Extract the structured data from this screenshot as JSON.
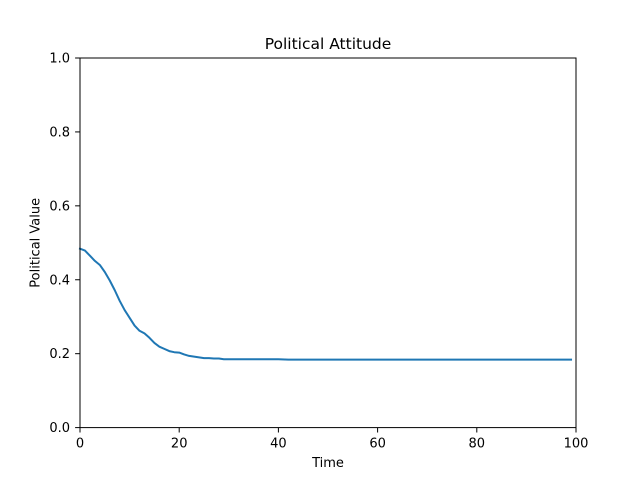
{
  "chart_data": {
    "type": "line",
    "title": "Political Attitude",
    "xlabel": "Time",
    "ylabel": "Political Value",
    "xlim": [
      0,
      100
    ],
    "ylim": [
      0.0,
      1.0
    ],
    "xticks": [
      0,
      20,
      40,
      60,
      80,
      100
    ],
    "yticks": [
      0.0,
      0.2,
      0.4,
      0.6,
      0.8,
      1.0
    ],
    "xtick_labels": [
      "0",
      "20",
      "40",
      "60",
      "80",
      "100"
    ],
    "ytick_labels": [
      "0.0",
      "0.2",
      "0.4",
      "0.6",
      "0.8",
      "1.0"
    ],
    "grid": false,
    "colors": {
      "series": "#1f77b4",
      "axes": "#000000",
      "background": "#ffffff"
    },
    "series": [
      {
        "x": [
          0,
          1,
          2,
          3,
          4,
          5,
          6,
          7,
          8,
          9,
          10,
          11,
          12,
          13,
          14,
          15,
          16,
          17,
          18,
          19,
          20,
          21,
          22,
          23,
          24,
          25,
          26,
          27,
          28,
          29,
          30,
          35,
          40,
          42,
          45,
          50,
          60,
          70,
          80,
          90,
          99
        ],
        "values": [
          0.484,
          0.479,
          0.465,
          0.451,
          0.44,
          0.421,
          0.398,
          0.372,
          0.343,
          0.318,
          0.297,
          0.276,
          0.262,
          0.255,
          0.243,
          0.229,
          0.219,
          0.213,
          0.207,
          0.204,
          0.203,
          0.198,
          0.194,
          0.192,
          0.19,
          0.188,
          0.188,
          0.187,
          0.187,
          0.185,
          0.185,
          0.185,
          0.185,
          0.184,
          0.184,
          0.184,
          0.184,
          0.184,
          0.184,
          0.184,
          0.184
        ]
      }
    ]
  }
}
